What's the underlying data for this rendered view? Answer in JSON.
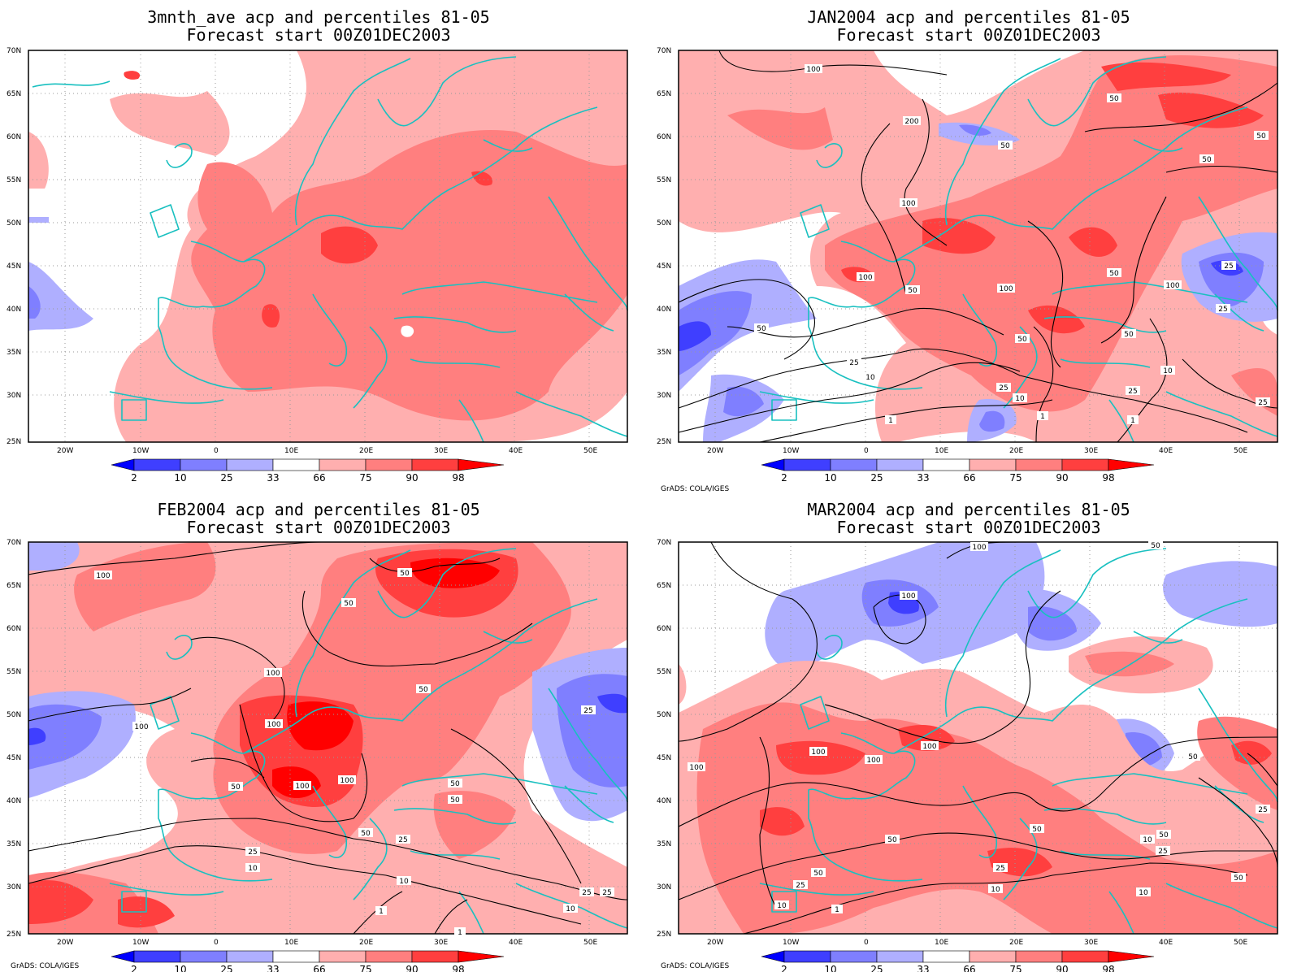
{
  "credit": "GrADS: COLA/IGES",
  "lat_labels": [
    "70N",
    "65N",
    "60N",
    "55N",
    "50N",
    "45N",
    "40N",
    "35N",
    "30N",
    "25N"
  ],
  "lon_labels": [
    "20W",
    "10W",
    "0",
    "10E",
    "20E",
    "30E",
    "40E",
    "50E"
  ],
  "colorbar": {
    "labels": [
      "2",
      "10",
      "25",
      "33",
      "66",
      "75",
      "90",
      "98"
    ],
    "colors": [
      "#0000ff",
      "#3f3fff",
      "#7f7fff",
      "#afafff",
      "#ffffff",
      "#ffafaf",
      "#ff7f7f",
      "#ff3f3f",
      "#ff0000"
    ]
  },
  "panels": [
    {
      "title1": "3mnth_ave acp and percentiles 81-05",
      "title2": "Forecast start 00Z01DEC2003",
      "show_credit": false,
      "contour_labels": []
    },
    {
      "title1": "JAN2004 acp and percentiles 81-05",
      "title2": "Forecast start 00Z01DEC2003",
      "show_credit": true,
      "contour_labels": [
        "100",
        "200",
        "50",
        "100",
        "50",
        "100",
        "50",
        "100",
        "100",
        "50",
        "25",
        "50",
        "50",
        "50",
        "25",
        "10",
        "25",
        "10",
        "1",
        "10",
        "25",
        "1",
        "1",
        "25",
        "50",
        "50",
        "25"
      ]
    },
    {
      "title1": "FEB2004 acp and percentiles 81-05",
      "title2": "Forecast start 00Z01DEC2003",
      "show_credit": true,
      "contour_labels": [
        "100",
        "50",
        "50",
        "100",
        "50",
        "100",
        "100",
        "100",
        "50",
        "50",
        "50",
        "25",
        "25",
        "10",
        "50",
        "10",
        "1",
        "1",
        "25",
        "25",
        "10",
        "25",
        "100"
      ]
    },
    {
      "title1": "MAR2004 acp and percentiles 81-05",
      "title2": "Forecast start 00Z01DEC2003",
      "show_credit": true,
      "contour_labels": [
        "100",
        "100",
        "100",
        "100",
        "100",
        "100",
        "50",
        "50",
        "25",
        "50",
        "25",
        "50",
        "50",
        "25",
        "10",
        "10",
        "10",
        "1",
        "50",
        "25",
        "10",
        "50"
      ]
    }
  ]
}
